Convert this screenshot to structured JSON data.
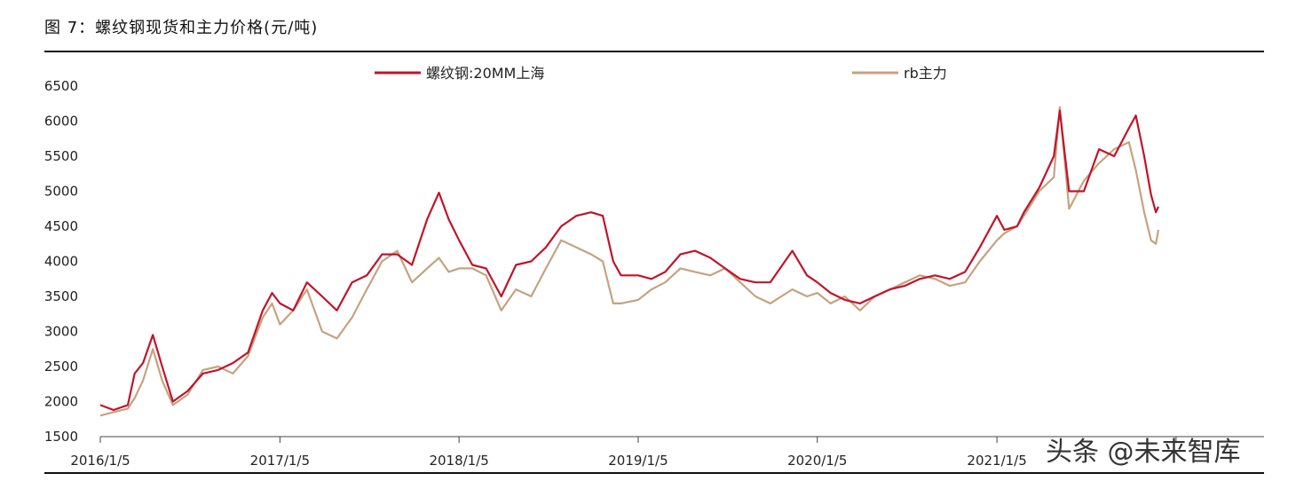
{
  "title": "图 7：螺纹钢现货和主力价格(元/吨)",
  "watermark": "头条 @未来智库",
  "chart_data": {
    "type": "line",
    "title": "图 7：螺纹钢现货和主力价格(元/吨)",
    "xlabel": "",
    "ylabel": "",
    "x_ticks": [
      "2016/1/5",
      "2017/1/5",
      "2018/1/5",
      "2019/1/5",
      "2020/1/5",
      "2021/1/5"
    ],
    "ylim": [
      1500,
      6500
    ],
    "y_ticks": [
      1500,
      2000,
      2500,
      3000,
      3500,
      4000,
      4500,
      5000,
      5500,
      6000,
      6500
    ],
    "grid": false,
    "legend_position": "top",
    "series": [
      {
        "name": "螺纹钢:20MM上海",
        "color": "#c0142b",
        "points": [
          [
            "2016-01-05",
            1950
          ],
          [
            "2016-02-01",
            1880
          ],
          [
            "2016-03-01",
            1950
          ],
          [
            "2016-03-15",
            2400
          ],
          [
            "2016-04-01",
            2550
          ],
          [
            "2016-04-21",
            2950
          ],
          [
            "2016-05-10",
            2500
          ],
          [
            "2016-06-01",
            2000
          ],
          [
            "2016-07-01",
            2150
          ],
          [
            "2016-08-01",
            2400
          ],
          [
            "2016-09-01",
            2450
          ],
          [
            "2016-10-01",
            2550
          ],
          [
            "2016-11-01",
            2700
          ],
          [
            "2016-12-01",
            3300
          ],
          [
            "2016-12-20",
            3550
          ],
          [
            "2017-01-05",
            3400
          ],
          [
            "2017-02-01",
            3300
          ],
          [
            "2017-03-01",
            3700
          ],
          [
            "2017-04-01",
            3500
          ],
          [
            "2017-05-01",
            3300
          ],
          [
            "2017-06-01",
            3700
          ],
          [
            "2017-07-01",
            3800
          ],
          [
            "2017-08-01",
            4100
          ],
          [
            "2017-09-01",
            4100
          ],
          [
            "2017-10-01",
            3950
          ],
          [
            "2017-11-01",
            4600
          ],
          [
            "2017-11-25",
            4980
          ],
          [
            "2017-12-15",
            4600
          ],
          [
            "2018-01-05",
            4300
          ],
          [
            "2018-02-01",
            3950
          ],
          [
            "2018-03-01",
            3900
          ],
          [
            "2018-04-01",
            3500
          ],
          [
            "2018-05-01",
            3950
          ],
          [
            "2018-06-01",
            4000
          ],
          [
            "2018-07-01",
            4200
          ],
          [
            "2018-08-01",
            4500
          ],
          [
            "2018-09-01",
            4650
          ],
          [
            "2018-10-01",
            4700
          ],
          [
            "2018-10-25",
            4650
          ],
          [
            "2018-11-15",
            4000
          ],
          [
            "2018-12-01",
            3800
          ],
          [
            "2019-01-05",
            3800
          ],
          [
            "2019-02-01",
            3750
          ],
          [
            "2019-03-01",
            3850
          ],
          [
            "2019-04-01",
            4100
          ],
          [
            "2019-05-01",
            4150
          ],
          [
            "2019-06-01",
            4050
          ],
          [
            "2019-07-01",
            3900
          ],
          [
            "2019-08-01",
            3750
          ],
          [
            "2019-09-01",
            3700
          ],
          [
            "2019-10-01",
            3700
          ],
          [
            "2019-11-15",
            4150
          ],
          [
            "2019-12-15",
            3800
          ],
          [
            "2020-01-05",
            3700
          ],
          [
            "2020-02-01",
            3550
          ],
          [
            "2020-03-01",
            3450
          ],
          [
            "2020-04-01",
            3400
          ],
          [
            "2020-05-01",
            3500
          ],
          [
            "2020-06-01",
            3600
          ],
          [
            "2020-07-01",
            3650
          ],
          [
            "2020-08-01",
            3750
          ],
          [
            "2020-09-01",
            3800
          ],
          [
            "2020-10-01",
            3750
          ],
          [
            "2020-11-01",
            3850
          ],
          [
            "2020-12-01",
            4200
          ],
          [
            "2021-01-05",
            4650
          ],
          [
            "2021-01-20",
            4450
          ],
          [
            "2021-02-15",
            4500
          ],
          [
            "2021-03-01",
            4700
          ],
          [
            "2021-04-01",
            5050
          ],
          [
            "2021-05-01",
            5500
          ],
          [
            "2021-05-13",
            6150
          ],
          [
            "2021-06-01",
            5000
          ],
          [
            "2021-07-01",
            5000
          ],
          [
            "2021-08-01",
            5600
          ],
          [
            "2021-09-01",
            5500
          ],
          [
            "2021-10-01",
            5900
          ],
          [
            "2021-10-15",
            6080
          ],
          [
            "2021-11-01",
            5500
          ],
          [
            "2021-11-15",
            4950
          ],
          [
            "2021-11-25",
            4700
          ],
          [
            "2021-11-30",
            4780
          ]
        ]
      },
      {
        "name": "rb主力",
        "color": "#c5a37f",
        "points": [
          [
            "2016-01-05",
            1800
          ],
          [
            "2016-02-01",
            1850
          ],
          [
            "2016-03-01",
            1900
          ],
          [
            "2016-03-15",
            2050
          ],
          [
            "2016-04-01",
            2300
          ],
          [
            "2016-04-21",
            2750
          ],
          [
            "2016-05-10",
            2300
          ],
          [
            "2016-06-01",
            1950
          ],
          [
            "2016-07-01",
            2100
          ],
          [
            "2016-08-01",
            2450
          ],
          [
            "2016-09-01",
            2500
          ],
          [
            "2016-10-01",
            2400
          ],
          [
            "2016-11-01",
            2650
          ],
          [
            "2016-12-01",
            3200
          ],
          [
            "2016-12-20",
            3400
          ],
          [
            "2017-01-05",
            3100
          ],
          [
            "2017-02-01",
            3300
          ],
          [
            "2017-03-01",
            3600
          ],
          [
            "2017-04-01",
            3000
          ],
          [
            "2017-05-01",
            2900
          ],
          [
            "2017-06-01",
            3200
          ],
          [
            "2017-07-01",
            3600
          ],
          [
            "2017-08-01",
            4000
          ],
          [
            "2017-09-01",
            4150
          ],
          [
            "2017-10-01",
            3700
          ],
          [
            "2017-11-01",
            3900
          ],
          [
            "2017-11-25",
            4050
          ],
          [
            "2017-12-15",
            3850
          ],
          [
            "2018-01-05",
            3900
          ],
          [
            "2018-02-01",
            3900
          ],
          [
            "2018-03-01",
            3800
          ],
          [
            "2018-04-01",
            3300
          ],
          [
            "2018-05-01",
            3600
          ],
          [
            "2018-06-01",
            3500
          ],
          [
            "2018-07-01",
            3900
          ],
          [
            "2018-08-01",
            4300
          ],
          [
            "2018-09-01",
            4200
          ],
          [
            "2018-10-01",
            4100
          ],
          [
            "2018-10-25",
            4000
          ],
          [
            "2018-11-15",
            3400
          ],
          [
            "2018-12-01",
            3400
          ],
          [
            "2019-01-05",
            3450
          ],
          [
            "2019-02-01",
            3600
          ],
          [
            "2019-03-01",
            3700
          ],
          [
            "2019-04-01",
            3900
          ],
          [
            "2019-05-01",
            3850
          ],
          [
            "2019-06-01",
            3800
          ],
          [
            "2019-07-01",
            3900
          ],
          [
            "2019-08-01",
            3700
          ],
          [
            "2019-09-01",
            3500
          ],
          [
            "2019-10-01",
            3400
          ],
          [
            "2019-11-15",
            3600
          ],
          [
            "2019-12-15",
            3500
          ],
          [
            "2020-01-05",
            3550
          ],
          [
            "2020-02-01",
            3400
          ],
          [
            "2020-03-01",
            3500
          ],
          [
            "2020-04-01",
            3300
          ],
          [
            "2020-05-01",
            3500
          ],
          [
            "2020-06-01",
            3600
          ],
          [
            "2020-07-01",
            3700
          ],
          [
            "2020-08-01",
            3800
          ],
          [
            "2020-09-01",
            3750
          ],
          [
            "2020-10-01",
            3650
          ],
          [
            "2020-11-01",
            3700
          ],
          [
            "2020-12-01",
            4000
          ],
          [
            "2021-01-05",
            4300
          ],
          [
            "2021-01-20",
            4400
          ],
          [
            "2021-02-15",
            4500
          ],
          [
            "2021-03-01",
            4650
          ],
          [
            "2021-04-01",
            5000
          ],
          [
            "2021-05-01",
            5200
          ],
          [
            "2021-05-13",
            6200
          ],
          [
            "2021-06-01",
            4750
          ],
          [
            "2021-07-01",
            5150
          ],
          [
            "2021-08-01",
            5400
          ],
          [
            "2021-09-01",
            5600
          ],
          [
            "2021-10-01",
            5700
          ],
          [
            "2021-10-15",
            5300
          ],
          [
            "2021-11-01",
            4700
          ],
          [
            "2021-11-15",
            4300
          ],
          [
            "2021-11-25",
            4250
          ],
          [
            "2021-11-30",
            4450
          ]
        ]
      }
    ]
  }
}
